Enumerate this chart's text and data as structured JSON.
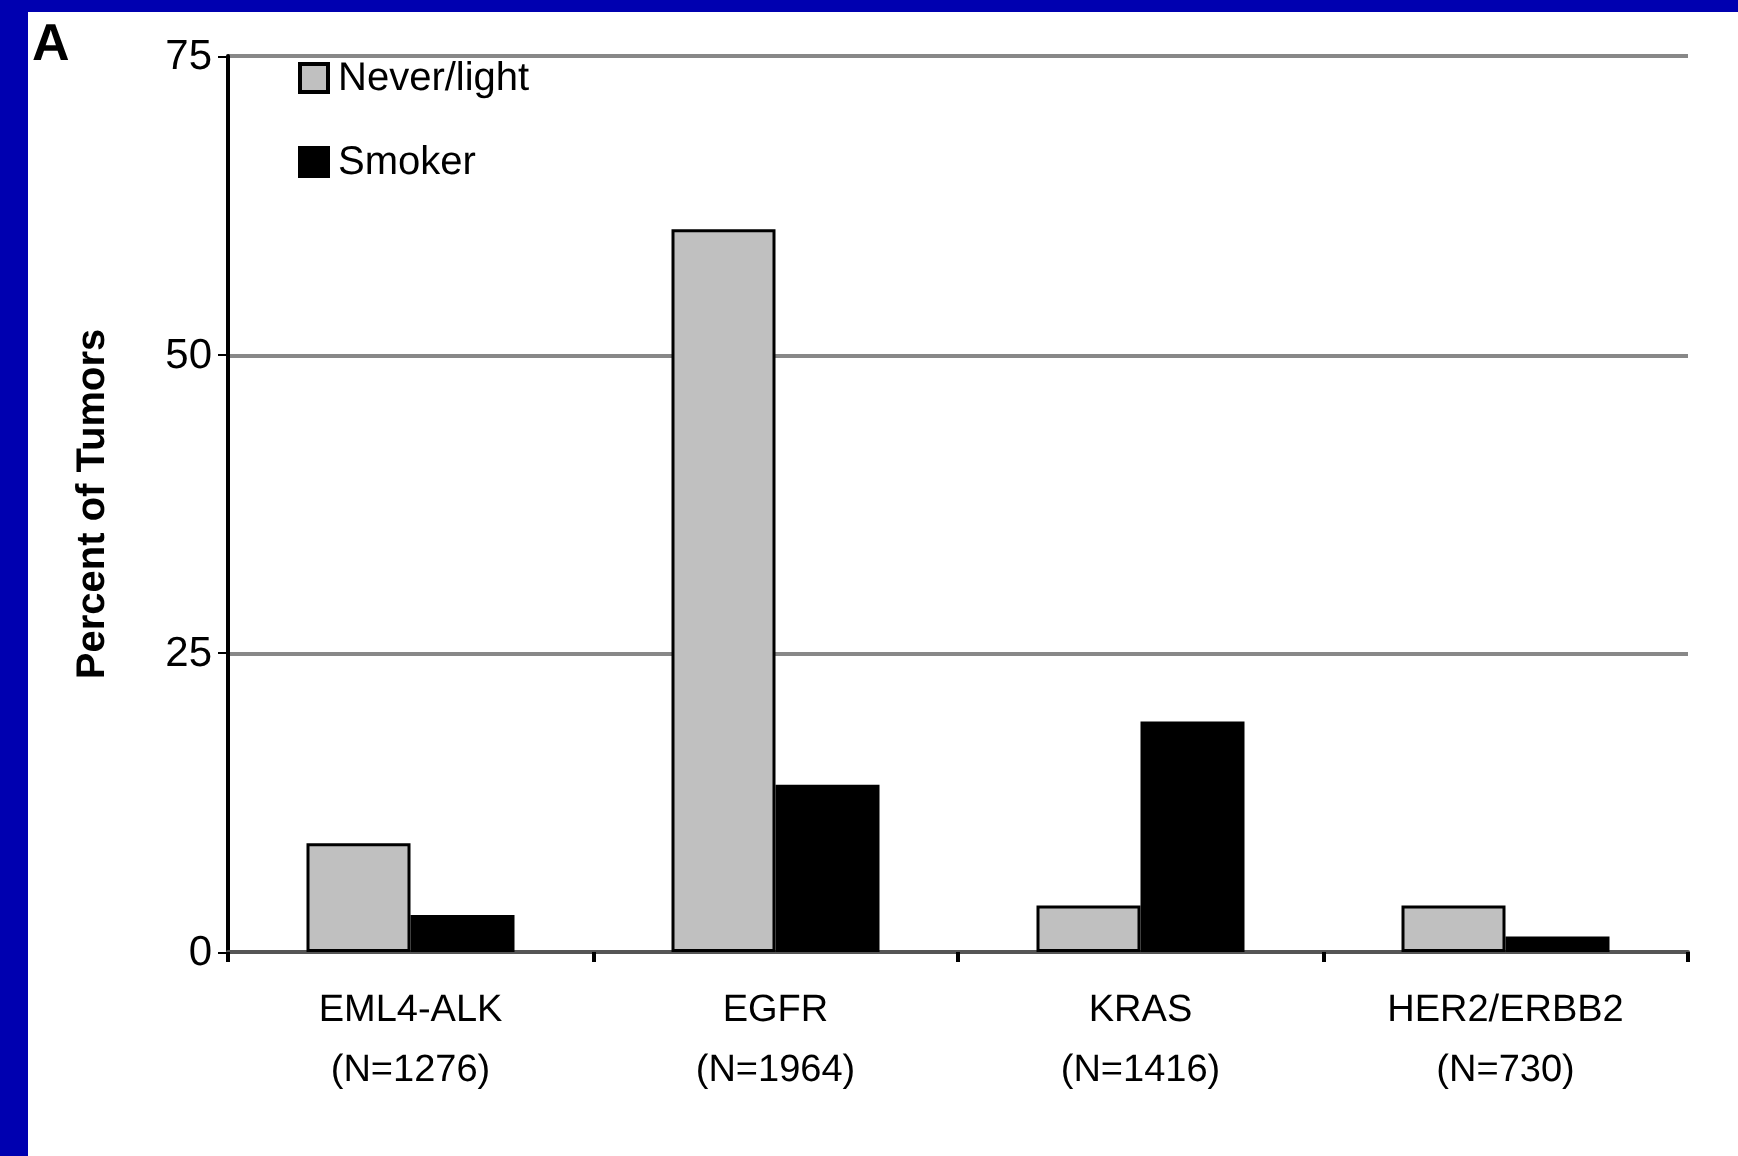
{
  "chart_data": {
    "type": "bar",
    "ylabel": "Percent of Tumors",
    "annotations": [
      "A"
    ],
    "categories": [
      "EML4-ALK\n(N=1276)",
      "EGFR\n(N=1964)",
      "KRAS\n(N=1416)",
      "HER2/ERBB2\n(N=730)"
    ],
    "series": [
      {
        "name": "Never/light",
        "color": "#c0c0c0",
        "values": [
          9.1,
          60.5,
          3.9,
          3.9
        ]
      },
      {
        "name": "Smoker",
        "color": "#000000",
        "values": [
          3.1,
          14.0,
          19.3,
          1.3
        ]
      }
    ],
    "ylim": [
      0,
      75
    ],
    "yticks": [
      0,
      25,
      50,
      75
    ],
    "grid": "y",
    "legend": "top left"
  }
}
